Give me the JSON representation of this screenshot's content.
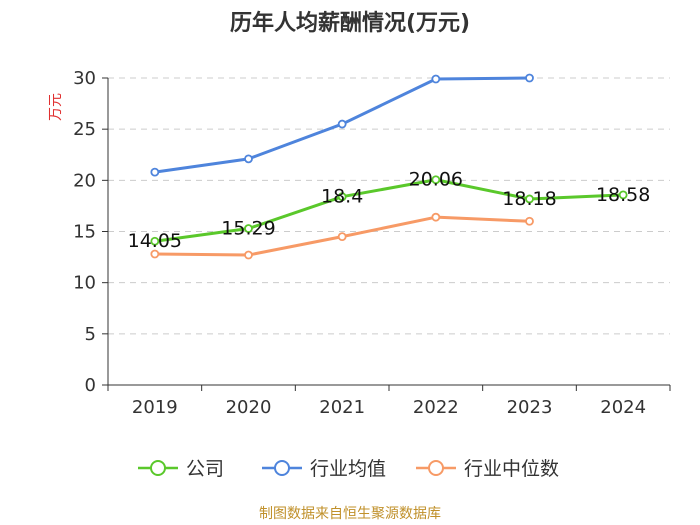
{
  "chart_data": {
    "type": "line",
    "title": "历年人均薪酬情况(万元)",
    "ylabel": "万元",
    "xlabel": "",
    "categories": [
      "2019",
      "2020",
      "2021",
      "2022",
      "2023",
      "2024"
    ],
    "ylim": [
      0,
      30
    ],
    "yticks": [
      0,
      5,
      10,
      15,
      20,
      25,
      30
    ],
    "grid": true,
    "legend_position": "bottom-center",
    "series": [
      {
        "name": "公司",
        "color": "#5ac82b",
        "values": [
          14.05,
          15.29,
          18.4,
          20.06,
          18.18,
          18.58
        ],
        "labels": [
          "14.05",
          "15.29",
          "18.4",
          "20.06",
          "18.18",
          "18.58"
        ]
      },
      {
        "name": "行业均值",
        "color": "#4e84dc",
        "values": [
          20.8,
          22.1,
          25.5,
          29.9,
          30.0,
          null
        ]
      },
      {
        "name": "行业中位数",
        "color": "#f79a66",
        "values": [
          12.8,
          12.7,
          14.5,
          16.4,
          16.0,
          null
        ]
      }
    ],
    "source": "制图数据来自恒生聚源数据库"
  }
}
